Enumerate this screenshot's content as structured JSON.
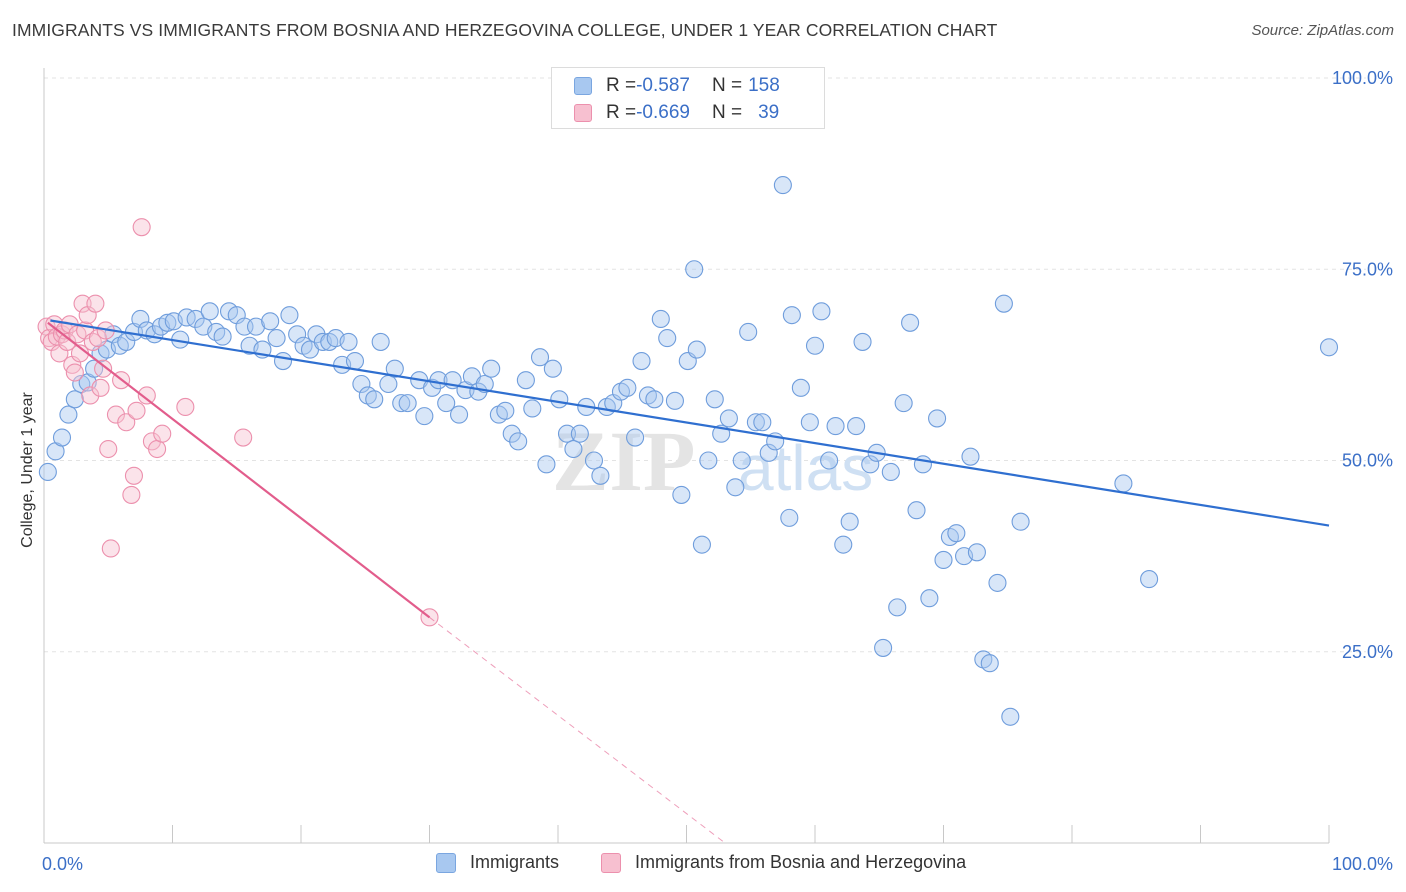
{
  "header": {
    "title": "IMMIGRANTS VS IMMIGRANTS FROM BOSNIA AND HERZEGOVINA COLLEGE, UNDER 1 YEAR CORRELATION CHART",
    "source": "Source: ZipAtlas.com"
  },
  "watermark": {
    "zip": "ZIP",
    "atlas": "atlas"
  },
  "legend_top": {
    "rows": [
      {
        "r_label": "R = ",
        "r_value": "-0.587",
        "n_label": "N = ",
        "n_value": "158",
        "color": "#a8c8f0",
        "border": "#7aa6e0"
      },
      {
        "r_label": "R = ",
        "r_value": "-0.669",
        "n_label": "N = ",
        "n_value": "39",
        "color": "#f7c0d0",
        "border": "#ec90ad"
      }
    ]
  },
  "chart_data": {
    "type": "scatter",
    "title": "IMMIGRANTS VS IMMIGRANTS FROM BOSNIA AND HERZEGOVINA COLLEGE, UNDER 1 YEAR CORRELATION CHART",
    "xlabel": "",
    "ylabel": "College, Under 1 year",
    "xlim": [
      0,
      100
    ],
    "ylim": [
      0,
      100
    ],
    "x_tick_labels": [
      "0.0%",
      "100.0%"
    ],
    "y_ticks": [
      25,
      50,
      75,
      100
    ],
    "y_tick_labels": [
      "25.0%",
      "50.0%",
      "75.0%",
      "100.0%"
    ],
    "grid": true,
    "legend_position": "bottom",
    "series": [
      {
        "name": "Immigrants",
        "color": "#a8c8f0",
        "stroke": "#6f9ddc",
        "trend_color": "#2f6fd0",
        "trend": {
          "x0": 0.5,
          "y0": 68.3,
          "x1": 100,
          "y1": 41.5
        },
        "points": [
          [
            0.3,
            48.5
          ],
          [
            0.9,
            51.2
          ],
          [
            1.4,
            53.0
          ],
          [
            1.9,
            56.0
          ],
          [
            2.4,
            58.0
          ],
          [
            2.9,
            60.0
          ],
          [
            3.4,
            60.2
          ],
          [
            3.9,
            62.0
          ],
          [
            4.4,
            64.0
          ],
          [
            4.9,
            64.5
          ],
          [
            5.4,
            66.5
          ],
          [
            5.9,
            65.0
          ],
          [
            6.4,
            65.5
          ],
          [
            7.0,
            66.8
          ],
          [
            7.5,
            68.5
          ],
          [
            8.0,
            67.0
          ],
          [
            8.6,
            66.5
          ],
          [
            9.1,
            67.5
          ],
          [
            9.6,
            68.0
          ],
          [
            10.1,
            68.2
          ],
          [
            10.6,
            65.8
          ],
          [
            11.1,
            68.7
          ],
          [
            11.8,
            68.5
          ],
          [
            12.4,
            67.5
          ],
          [
            12.9,
            69.5
          ],
          [
            13.4,
            66.8
          ],
          [
            13.9,
            66.2
          ],
          [
            14.4,
            69.5
          ],
          [
            15.0,
            69.0
          ],
          [
            15.6,
            67.5
          ],
          [
            16.0,
            65.0
          ],
          [
            16.5,
            67.5
          ],
          [
            17.0,
            64.5
          ],
          [
            17.6,
            68.2
          ],
          [
            18.1,
            66.0
          ],
          [
            18.6,
            63.0
          ],
          [
            19.1,
            69.0
          ],
          [
            19.7,
            66.5
          ],
          [
            20.2,
            65.0
          ],
          [
            20.7,
            64.5
          ],
          [
            21.2,
            66.5
          ],
          [
            21.7,
            65.5
          ],
          [
            22.2,
            65.5
          ],
          [
            22.7,
            66.0
          ],
          [
            23.2,
            62.5
          ],
          [
            23.7,
            65.5
          ],
          [
            24.2,
            63.0
          ],
          [
            24.7,
            60.0
          ],
          [
            25.2,
            58.5
          ],
          [
            25.7,
            58.0
          ],
          [
            26.2,
            65.5
          ],
          [
            26.8,
            60.0
          ],
          [
            27.3,
            62.0
          ],
          [
            27.8,
            57.5
          ],
          [
            28.3,
            57.5
          ],
          [
            29.2,
            60.5
          ],
          [
            29.6,
            55.8
          ],
          [
            30.2,
            59.5
          ],
          [
            30.7,
            60.5
          ],
          [
            31.3,
            57.5
          ],
          [
            31.8,
            60.5
          ],
          [
            32.3,
            56.0
          ],
          [
            32.8,
            59.2
          ],
          [
            33.3,
            61.0
          ],
          [
            33.8,
            59.0
          ],
          [
            34.3,
            60.0
          ],
          [
            34.8,
            62.0
          ],
          [
            35.4,
            56.0
          ],
          [
            35.9,
            56.5
          ],
          [
            36.4,
            53.5
          ],
          [
            36.9,
            52.5
          ],
          [
            37.5,
            60.5
          ],
          [
            38.0,
            56.8
          ],
          [
            38.6,
            63.5
          ],
          [
            39.1,
            49.5
          ],
          [
            39.6,
            62.0
          ],
          [
            40.1,
            58.0
          ],
          [
            40.7,
            53.5
          ],
          [
            41.2,
            51.5
          ],
          [
            41.7,
            53.5
          ],
          [
            42.2,
            57.0
          ],
          [
            42.8,
            50.0
          ],
          [
            43.3,
            48.0
          ],
          [
            43.8,
            57.0
          ],
          [
            44.3,
            57.5
          ],
          [
            44.9,
            59.0
          ],
          [
            45.4,
            59.5
          ],
          [
            46.0,
            53.0
          ],
          [
            46.5,
            63.0
          ],
          [
            47.0,
            58.5
          ],
          [
            47.5,
            58.0
          ],
          [
            48.0,
            68.5
          ],
          [
            48.5,
            66.0
          ],
          [
            49.1,
            57.8
          ],
          [
            49.6,
            45.5
          ],
          [
            50.1,
            63.0
          ],
          [
            50.6,
            75.0
          ],
          [
            50.8,
            64.5
          ],
          [
            51.2,
            39.0
          ],
          [
            51.7,
            50.0
          ],
          [
            52.2,
            58.0
          ],
          [
            52.7,
            53.5
          ],
          [
            53.3,
            55.5
          ],
          [
            53.8,
            46.5
          ],
          [
            54.3,
            50.0
          ],
          [
            54.8,
            66.8
          ],
          [
            55.4,
            55.0
          ],
          [
            55.9,
            55.0
          ],
          [
            56.4,
            51.0
          ],
          [
            56.9,
            52.5
          ],
          [
            57.5,
            86.0
          ],
          [
            58.0,
            42.5
          ],
          [
            58.2,
            69.0
          ],
          [
            58.9,
            59.5
          ],
          [
            59.6,
            55.0
          ],
          [
            60.0,
            65.0
          ],
          [
            60.5,
            69.5
          ],
          [
            61.1,
            50.0
          ],
          [
            61.6,
            54.5
          ],
          [
            62.2,
            39.0
          ],
          [
            62.7,
            42.0
          ],
          [
            63.2,
            54.5
          ],
          [
            63.7,
            65.5
          ],
          [
            64.3,
            49.5
          ],
          [
            64.8,
            51.0
          ],
          [
            65.3,
            25.5
          ],
          [
            65.9,
            48.5
          ],
          [
            66.4,
            30.8
          ],
          [
            66.9,
            57.5
          ],
          [
            67.4,
            68.0
          ],
          [
            67.9,
            43.5
          ],
          [
            68.4,
            49.5
          ],
          [
            68.9,
            32.0
          ],
          [
            69.5,
            55.5
          ],
          [
            70.0,
            37.0
          ],
          [
            70.5,
            40.0
          ],
          [
            71.0,
            40.5
          ],
          [
            71.6,
            37.5
          ],
          [
            72.1,
            50.5
          ],
          [
            72.6,
            38.0
          ],
          [
            73.1,
            24.0
          ],
          [
            73.6,
            23.5
          ],
          [
            74.2,
            34.0
          ],
          [
            74.7,
            70.5
          ],
          [
            75.2,
            16.5
          ],
          [
            76.0,
            42.0
          ],
          [
            84.0,
            47.0
          ],
          [
            86.0,
            34.5
          ],
          [
            100.0,
            64.8
          ]
        ]
      },
      {
        "name": "Immigrants from Bosnia and Herzegovina",
        "color": "#f7c0d0",
        "stroke": "#ec90ad",
        "trend_color": "#e25d8c",
        "trend": {
          "x0": 0.3,
          "y0": 68.0,
          "x1": 30.0,
          "y1": 29.5
        },
        "trend_extension": {
          "x1": 53.0,
          "y1": 0
        },
        "points": [
          [
            0.2,
            67.5
          ],
          [
            0.4,
            66.0
          ],
          [
            0.6,
            65.5
          ],
          [
            0.8,
            67.8
          ],
          [
            1.0,
            66.2
          ],
          [
            1.2,
            64.0
          ],
          [
            1.4,
            66.5
          ],
          [
            1.6,
            67.0
          ],
          [
            1.8,
            65.5
          ],
          [
            2.0,
            67.8
          ],
          [
            2.2,
            62.5
          ],
          [
            2.4,
            61.5
          ],
          [
            2.6,
            66.5
          ],
          [
            2.8,
            64.0
          ],
          [
            3.0,
            70.5
          ],
          [
            3.2,
            67.0
          ],
          [
            3.4,
            69.0
          ],
          [
            3.6,
            58.5
          ],
          [
            3.8,
            65.5
          ],
          [
            4.0,
            70.5
          ],
          [
            4.2,
            66.0
          ],
          [
            4.4,
            59.5
          ],
          [
            4.6,
            62.0
          ],
          [
            4.8,
            67.0
          ],
          [
            5.0,
            51.5
          ],
          [
            5.2,
            38.5
          ],
          [
            5.6,
            56.0
          ],
          [
            6.0,
            60.5
          ],
          [
            6.4,
            55.0
          ],
          [
            6.8,
            45.5
          ],
          [
            7.0,
            48.0
          ],
          [
            7.2,
            56.5
          ],
          [
            7.6,
            80.5
          ],
          [
            8.0,
            58.5
          ],
          [
            8.4,
            52.5
          ],
          [
            8.8,
            51.5
          ],
          [
            9.2,
            53.5
          ],
          [
            11.0,
            57.0
          ],
          [
            15.5,
            53.0
          ],
          [
            30.0,
            29.5
          ]
        ]
      }
    ]
  },
  "legend_bottom": {
    "items": [
      {
        "label": "Immigrants",
        "color": "#a8c8f0",
        "border": "#7aa6e0"
      },
      {
        "label": "Immigrants from Bosnia and Herzegovina",
        "color": "#f7c0d0",
        "border": "#ec90ad"
      }
    ]
  }
}
